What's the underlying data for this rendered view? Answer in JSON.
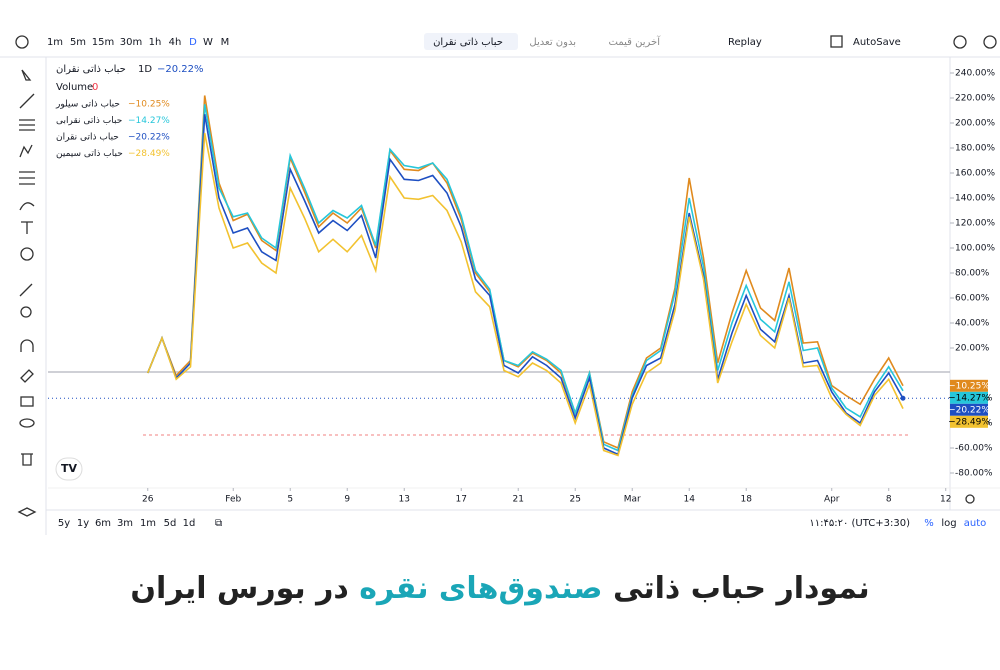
{
  "toolbar": {
    "intervals": [
      "1m",
      "5m",
      "15m",
      "30m",
      "1h",
      "4h",
      "D",
      "W",
      "M"
    ],
    "symbol": "حباب ذاتی نقران",
    "adjustment": "بدون تعدیل",
    "price_mode": "آخرین قیمت",
    "replay": "Replay",
    "autosave": "AutoSave"
  },
  "legend": {
    "symbol": "حباب ذاتی نقران",
    "interval": "1D",
    "value": "−20.22%",
    "volume": "Volume",
    "volume_value": "0"
  },
  "bottom_bar": {
    "ranges": [
      "5y",
      "1y",
      "6m",
      "3m",
      "1m",
      "5d",
      "1d"
    ],
    "time": "۱۱:۴۵:۲۰ (UTC+3:30)",
    "percent": "%",
    "log": "log",
    "auto": "auto"
  },
  "caption": {
    "before": "نمودار حباب ذاتی",
    "highlight": "صندوق‌های نقره",
    "after": "در بورس ایران"
  },
  "chart_data": {
    "type": "line",
    "x": [
      0,
      1,
      2,
      3,
      4,
      5,
      6,
      7,
      8,
      9,
      10,
      11,
      12,
      13,
      14,
      15,
      16,
      17,
      18,
      19,
      20,
      21,
      22,
      23,
      24,
      25,
      26,
      27,
      28,
      29,
      30,
      31,
      32,
      33,
      34,
      35,
      36,
      37,
      38,
      39,
      40,
      41,
      42,
      43,
      44,
      45,
      46,
      47,
      48,
      49,
      50,
      51,
      52,
      53
    ],
    "xlim": [
      -7,
      56.3
    ],
    "xticks": [
      {
        "value": 0,
        "label": "26"
      },
      {
        "value": 6,
        "label": "Feb"
      },
      {
        "value": 10,
        "label": "5"
      },
      {
        "value": 14,
        "label": "9"
      },
      {
        "value": 18,
        "label": "13"
      },
      {
        "value": 22,
        "label": "17"
      },
      {
        "value": 26,
        "label": "21"
      },
      {
        "value": 30,
        "label": "25"
      },
      {
        "value": 34,
        "label": "Mar"
      },
      {
        "value": 38,
        "label": "14"
      },
      {
        "value": 42,
        "label": "18"
      },
      {
        "value": 48,
        "label": "Apr"
      },
      {
        "value": 52,
        "label": "8"
      },
      {
        "value": 56,
        "label": "12"
      }
    ],
    "ylim": [
      -92,
      252
    ],
    "yticks": [
      {
        "value": -80,
        "label": "-80.00%"
      },
      {
        "value": -60,
        "label": "-60.00%"
      },
      {
        "value": -40,
        "label": "-40.00%"
      },
      {
        "value": -20,
        "label": "-20.00%"
      },
      {
        "value": 20,
        "label": "20.00%"
      },
      {
        "value": 40,
        "label": "40.00%"
      },
      {
        "value": 60,
        "label": "60.00%"
      },
      {
        "value": 80,
        "label": "80.00%"
      },
      {
        "value": 100,
        "label": "100.00%"
      },
      {
        "value": 120,
        "label": "120.00%"
      },
      {
        "value": 140,
        "label": "140.00%"
      },
      {
        "value": 160,
        "label": "160.00%"
      },
      {
        "value": 180,
        "label": "180.00%"
      },
      {
        "value": 200,
        "label": "200.00%"
      },
      {
        "value": 220,
        "label": "220.00%"
      },
      {
        "value": 240,
        "label": "240.00%"
      }
    ],
    "series": [
      {
        "name": "حباب ذاتی سیلور",
        "color": "#e08a1e",
        "values": [
          0,
          28,
          -2,
          10,
          222,
          152,
          122,
          127,
          106,
          98,
          172,
          145,
          117,
          128,
          120,
          132,
          100,
          178,
          163,
          162,
          168,
          152,
          123,
          80,
          65,
          10,
          5,
          16,
          10,
          0,
          -32,
          0,
          -55,
          -60,
          -15,
          12,
          20,
          68,
          156,
          92,
          8,
          48,
          82,
          52,
          42,
          84,
          24,
          25,
          -10,
          -18,
          -25,
          -5,
          12,
          -10.25
        ],
        "value_labels": [
          null,
          null,
          null,
          null,
          null,
          null,
          null,
          null,
          null,
          null,
          null,
          null,
          null,
          null,
          null,
          null,
          null,
          null,
          null,
          null,
          null,
          null,
          null,
          null,
          null,
          null,
          null,
          null,
          null,
          null,
          null,
          null,
          null,
          null,
          null,
          null,
          null,
          null,
          null,
          null,
          null,
          null,
          null,
          null,
          null,
          null,
          null,
          null,
          null,
          null,
          null,
          null,
          null,
          "−10.25%"
        ]
      },
      {
        "name": "حباب ذاتی نقرابی",
        "color": "#26c6da",
        "values": [
          0,
          28,
          -4,
          8,
          215,
          148,
          125,
          128,
          108,
          100,
          174,
          148,
          120,
          130,
          124,
          134,
          102,
          179,
          166,
          164,
          168,
          155,
          126,
          82,
          67,
          10,
          6,
          17,
          11,
          2,
          -32,
          0,
          -57,
          -62,
          -18,
          10,
          18,
          64,
          140,
          85,
          2,
          40,
          70,
          43,
          33,
          73,
          18,
          20,
          -12,
          -28,
          -35,
          -12,
          5,
          -14.27
        ],
        "value_labels": [
          null,
          null,
          null,
          null,
          null,
          null,
          null,
          null,
          null,
          null,
          null,
          null,
          null,
          null,
          null,
          null,
          null,
          null,
          null,
          null,
          null,
          null,
          null,
          null,
          null,
          null,
          null,
          null,
          null,
          null,
          null,
          null,
          null,
          null,
          null,
          null,
          null,
          null,
          null,
          null,
          null,
          null,
          null,
          null,
          null,
          null,
          null,
          null,
          null,
          null,
          null,
          null,
          null,
          "−14.27%"
        ]
      },
      {
        "name": "حباب ذاتی نقران",
        "color": "#1e4fc2",
        "values": [
          0,
          28,
          -4,
          8,
          207,
          140,
          112,
          116,
          97,
          90,
          163,
          138,
          112,
          122,
          114,
          126,
          92,
          171,
          155,
          154,
          158,
          144,
          117,
          75,
          62,
          6,
          0,
          13,
          6,
          -4,
          -36,
          -4,
          -60,
          -65,
          -20,
          6,
          12,
          55,
          128,
          78,
          -5,
          32,
          62,
          35,
          25,
          62,
          8,
          10,
          -15,
          -32,
          -40,
          -15,
          0,
          -20.22
        ],
        "value_labels": [
          null,
          null,
          null,
          null,
          null,
          null,
          null,
          null,
          null,
          null,
          null,
          null,
          null,
          null,
          null,
          null,
          null,
          null,
          null,
          null,
          null,
          null,
          null,
          null,
          null,
          null,
          null,
          null,
          null,
          null,
          null,
          null,
          null,
          null,
          null,
          null,
          null,
          null,
          null,
          null,
          null,
          null,
          null,
          null,
          null,
          null,
          null,
          null,
          null,
          null,
          null,
          null,
          null,
          "−20.22%"
        ]
      },
      {
        "name": "حباب ذاتی سیمین",
        "color": "#f2c230",
        "values": [
          0,
          28,
          -5,
          5,
          192,
          132,
          100,
          104,
          88,
          80,
          148,
          124,
          97,
          107,
          97,
          110,
          82,
          157,
          140,
          139,
          142,
          130,
          105,
          65,
          53,
          2,
          -3,
          8,
          2,
          -8,
          -40,
          -9,
          -62,
          -66,
          -25,
          0,
          8,
          50,
          125,
          75,
          -8,
          25,
          55,
          30,
          20,
          60,
          5,
          6,
          -20,
          -33,
          -42,
          -18,
          -5,
          -28.49
        ],
        "value_labels": [
          null,
          null,
          null,
          null,
          null,
          null,
          null,
          null,
          null,
          null,
          null,
          null,
          null,
          null,
          null,
          null,
          null,
          null,
          null,
          null,
          null,
          null,
          null,
          null,
          null,
          null,
          null,
          null,
          null,
          null,
          null,
          null,
          null,
          null,
          null,
          null,
          null,
          null,
          null,
          null,
          null,
          null,
          null,
          null,
          null,
          null,
          null,
          null,
          null,
          null,
          null,
          null,
          null,
          "−28.49%"
        ]
      }
    ]
  }
}
